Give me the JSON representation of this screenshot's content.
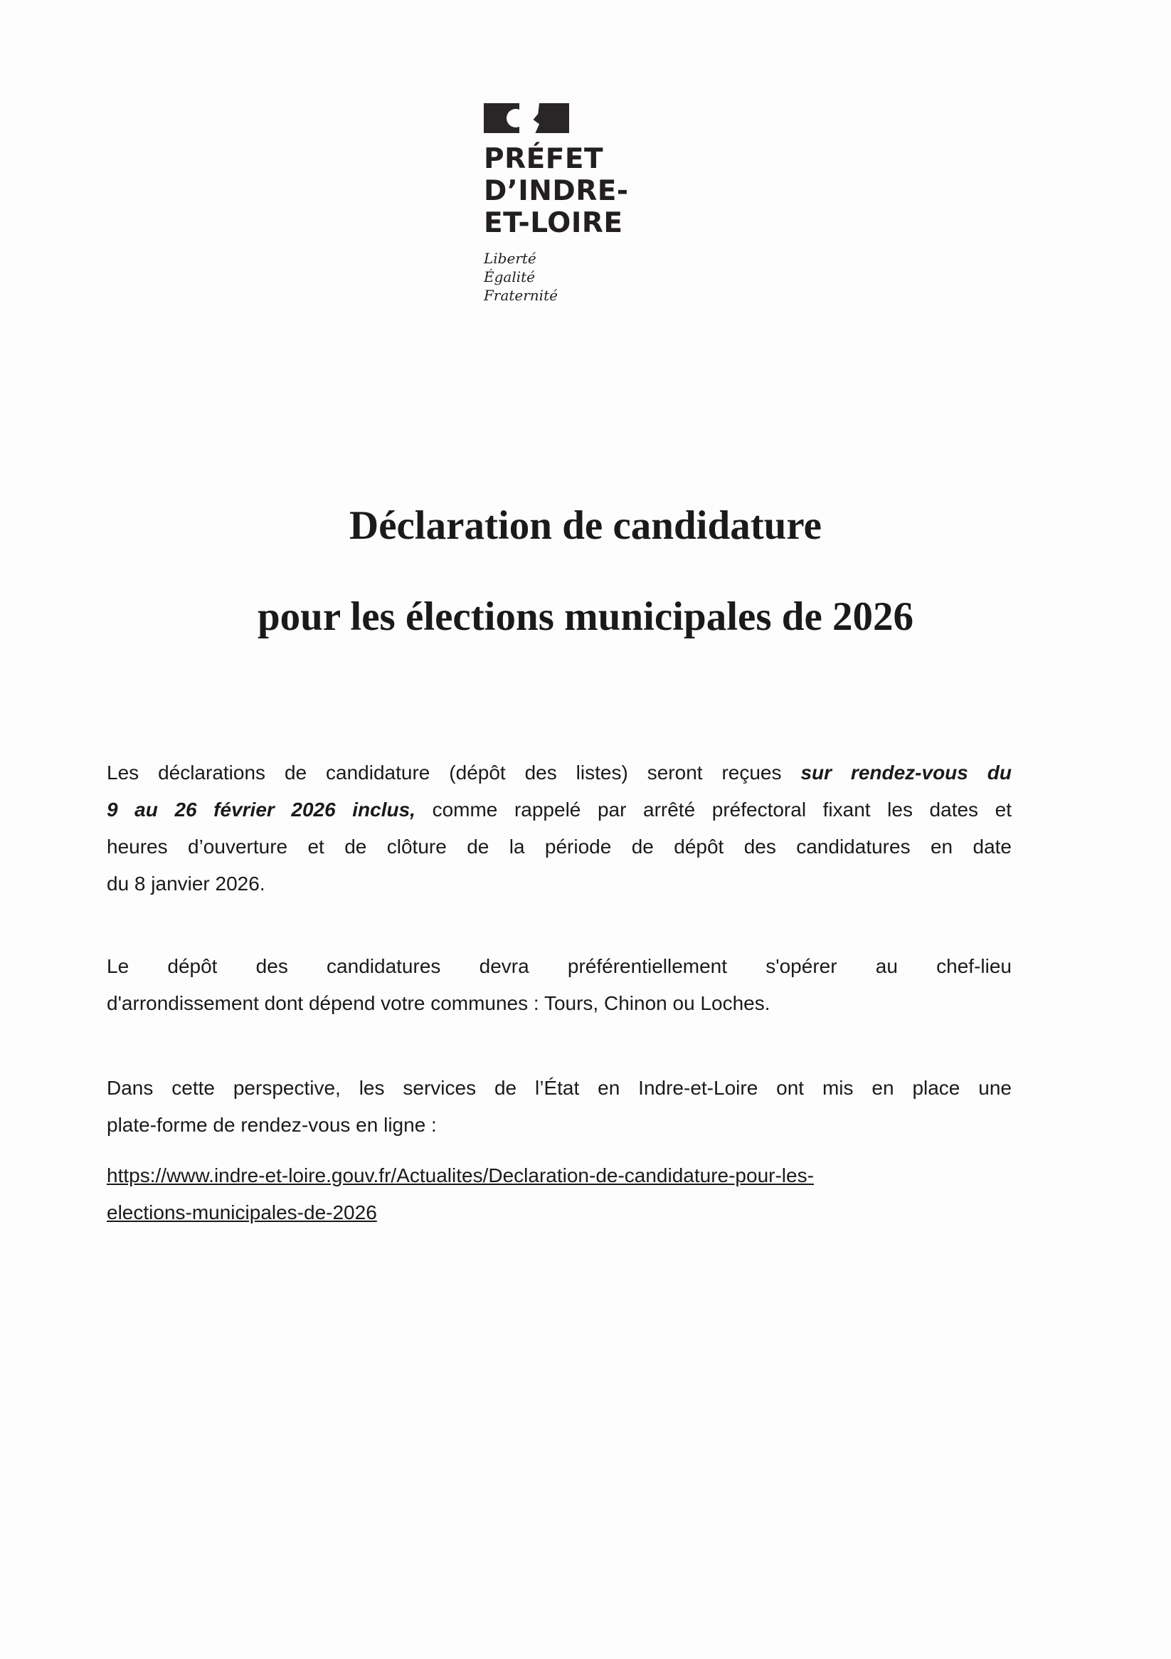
{
  "header": {
    "logo": {
      "lines": [
        "PRÉFET",
        "D’INDRE-",
        "ET-LOIRE"
      ],
      "motto": [
        "Liberté",
        "Égalité",
        "Fraternité"
      ]
    }
  },
  "title": {
    "line1": "Déclaration de candidature",
    "line2": "pour les élections municipales de 2026"
  },
  "body": {
    "p1": {
      "l1_a": "Les déclarations de candidature (dépôt des listes) seront reçues ",
      "l1_b": "sur rendez-vous du",
      "l2_a": "9 au 26 février 2026 inclus,",
      "l2_b": " comme rappelé par arrêté préfectoral fixant les dates et",
      "l3": "heures d’ouverture et de clôture de la période de dépôt des candidatures en date",
      "l4": "du 8 janvier 2026."
    },
    "p2": {
      "l1": "Le dépôt des candidatures devra préférentiellement s'opérer au chef-lieu",
      "l2": "d'arrondissement dont dépend votre communes : Tours, Chinon ou Loches."
    },
    "p3": {
      "l1": "Dans cette perspective, les services de l’État en Indre-et-Loire ont mis en place une",
      "l2": "plate-forme de rendez-vous en ligne :"
    },
    "link": {
      "l1": "https://www.indre-et-loire.gouv.fr/Actualites/Declaration-de-candidature-pour-les-",
      "l2": "elections-municipales-de-2026"
    }
  }
}
